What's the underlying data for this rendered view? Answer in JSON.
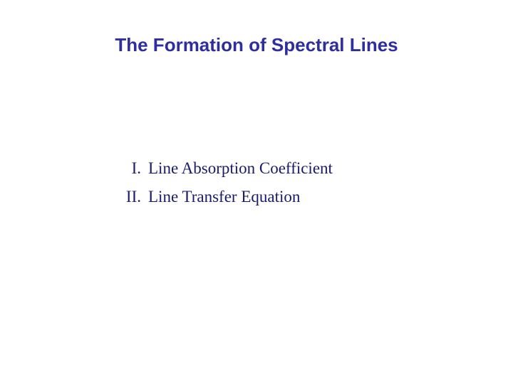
{
  "title": {
    "text": "The Formation of Spectral Lines",
    "color": "#2e2e9e",
    "fontsize": 26
  },
  "list": {
    "color": "#1a1a6a",
    "fontsize": 23,
    "items": [
      {
        "marker": "I.",
        "text": "Line Absorption Coefficient"
      },
      {
        "marker": "II.",
        "text": "Line Transfer Equation"
      }
    ]
  },
  "background_color": "#ffffff"
}
